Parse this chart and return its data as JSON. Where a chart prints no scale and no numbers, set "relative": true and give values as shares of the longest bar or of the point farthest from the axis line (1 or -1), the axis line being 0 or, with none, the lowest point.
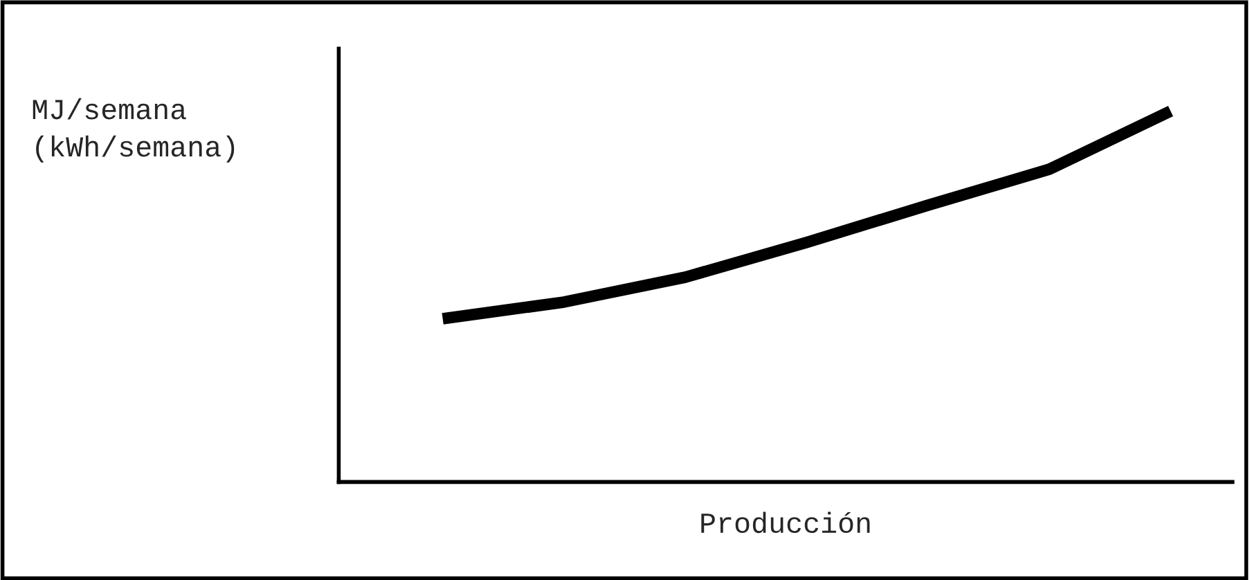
{
  "chart_data": {
    "type": "line",
    "relative": true,
    "xlabel": "Producción",
    "ylabel": "MJ/semana\n(kWh/semana)",
    "categories": [
      null,
      null,
      null,
      null,
      null,
      null,
      null
    ],
    "series": [
      {
        "color": "#000000",
        "values": [
          0.44,
          0.485,
          0.552,
          0.646,
          0.746,
          0.843,
          1.0
        ]
      }
    ],
    "grid": false,
    "legend": false,
    "marker": "none",
    "line_style": "solid"
  }
}
